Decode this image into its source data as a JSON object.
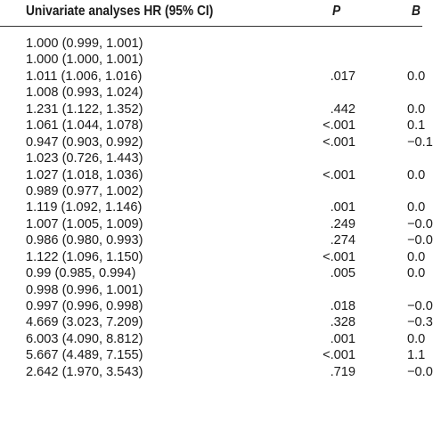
{
  "header": {
    "hr_label": "Univariate analyses HR (95% CI)",
    "p_label": "P",
    "b_label": "B"
  },
  "rows": [
    {
      "hr": "1.000 (0.999, 1.001)",
      "p": "",
      "b": ""
    },
    {
      "hr": "1.000 (1.000, 1.001)",
      "p": "",
      "b": ""
    },
    {
      "hr": "1.011 (1.006, 1.016)",
      "p": ".017",
      "b": "0.0"
    },
    {
      "hr": "1.008 (0.993, 1.024)",
      "p": "",
      "b": ""
    },
    {
      "hr": "1.231 (1.122, 1.352)",
      "p": ".442",
      "b": "0.0"
    },
    {
      "hr": "1.061 (1.044, 1.078)",
      "p": "<.001",
      "b": "0.1"
    },
    {
      "hr": "0.947 (0.903, 0.992)",
      "p": "<.001",
      "b": "−0.1"
    },
    {
      "hr": "1.023 (0.726, 1.443)",
      "p": "",
      "b": ""
    },
    {
      "hr": "1.027 (1.018, 1.036)",
      "p": "<.001",
      "b": "0.0"
    },
    {
      "hr": "0.989 (0.977, 1.002)",
      "p": "",
      "b": ""
    },
    {
      "hr": "1.119 (1.092, 1.146)",
      "p": ".001",
      "b": "0.0"
    },
    {
      "hr": "1.007 (1.005, 1.009)",
      "p": ".249",
      "b": "−0.0"
    },
    {
      "hr": "0.986 (0.980, 0.993)",
      "p": ".274",
      "b": "−0.0"
    },
    {
      "hr": "1.122 (1.096, 1.150)",
      "p": "<.001",
      "b": "0.0"
    },
    {
      "hr": "0.99 (0.985, 0.994)",
      "p": ".005",
      "b": "0.0"
    },
    {
      "hr": "0.998 (0.996, 1.001)",
      "p": "",
      "b": ""
    },
    {
      "hr": "0.997 (0.996, 0.998)",
      "p": ".018",
      "b": "−0.0"
    },
    {
      "hr": "4.669 (3.023, 7.209)",
      "p": ".328",
      "b": "−0.3"
    },
    {
      "hr": "6.003 (4.090, 8.812)",
      "p": ".001",
      "b": "0.0"
    },
    {
      "hr": "5.667 (4.489, 7.155)",
      "p": "<.001",
      "b": "1.1"
    },
    {
      "hr": "2.642 (1.970, 3.543)",
      "p": ".719",
      "b": "−0.0"
    }
  ]
}
